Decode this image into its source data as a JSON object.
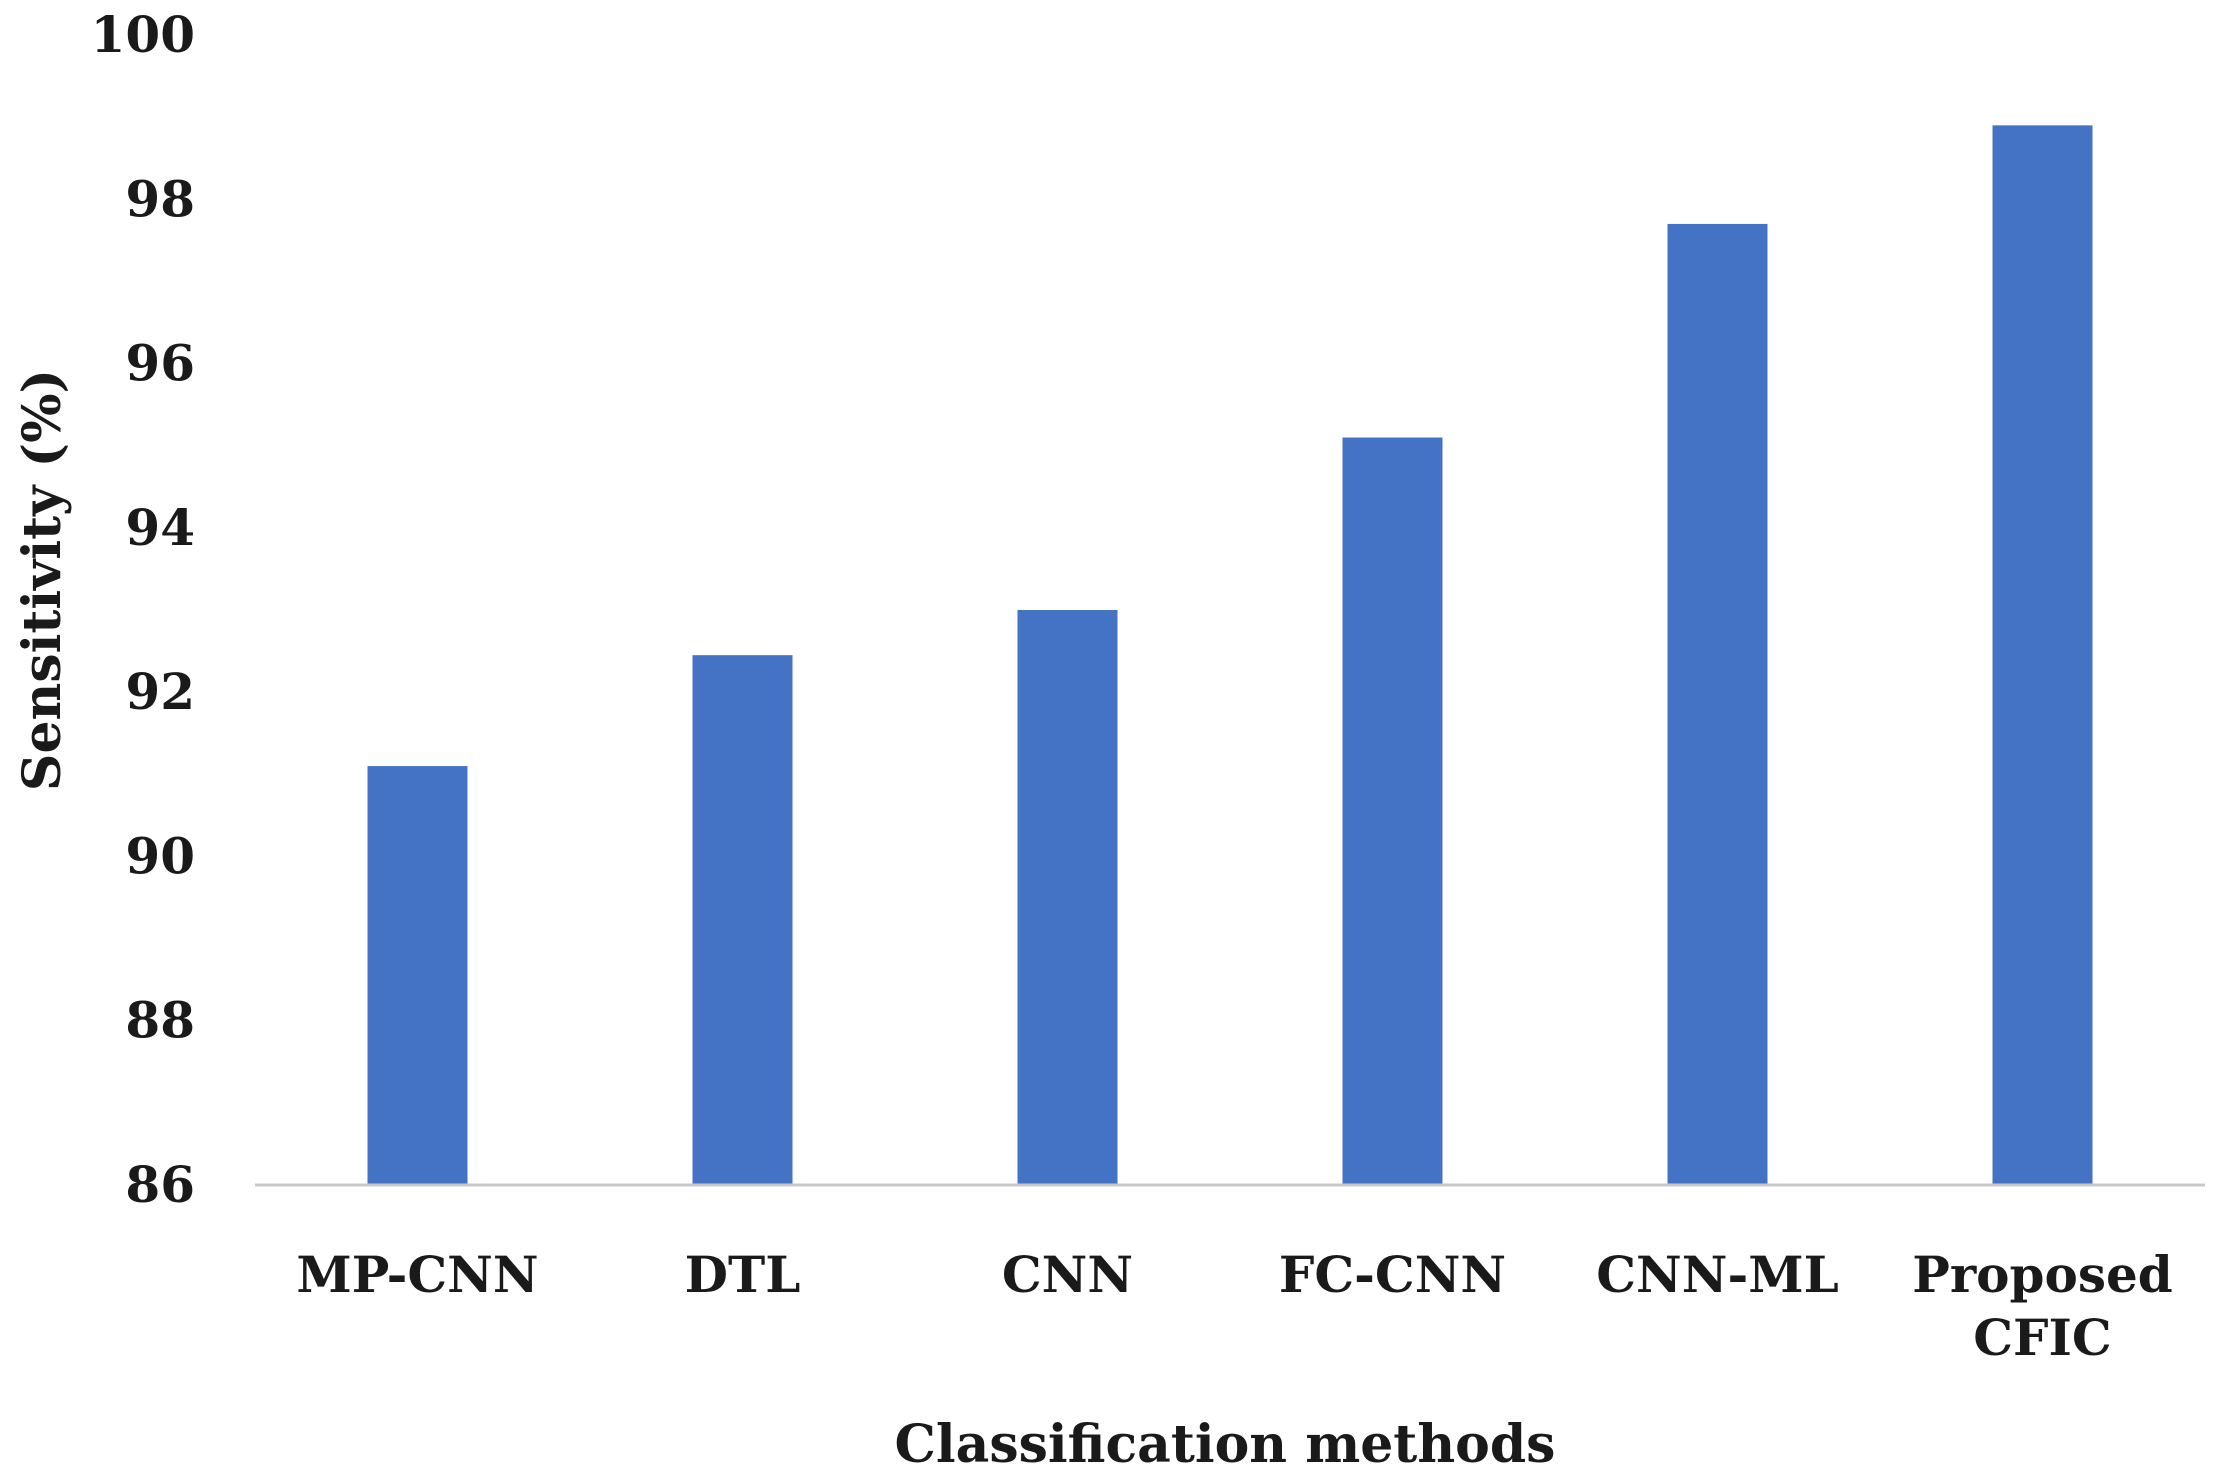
{
  "chart_data": {
    "type": "bar",
    "title": "",
    "xlabel": "Classification methods",
    "ylabel": "Sensitivity (%)",
    "ylim": [
      86,
      100
    ],
    "yticks": [
      86,
      88,
      90,
      92,
      94,
      96,
      98,
      100
    ],
    "grid": false,
    "categories": [
      [
        "MP-CNN"
      ],
      [
        "DTL"
      ],
      [
        "CNN"
      ],
      [
        "FC-CNN"
      ],
      [
        "CNN-ML"
      ],
      [
        "Proposed",
        "CFIC"
      ]
    ],
    "values": [
      91.1,
      92.45,
      93.0,
      95.1,
      97.7,
      98.9
    ],
    "bar_color": "#4472c4",
    "axis_color": "#c8c8c8"
  }
}
